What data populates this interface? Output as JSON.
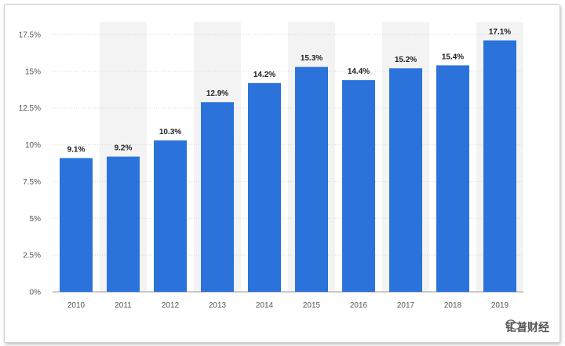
{
  "chart_data": {
    "type": "bar",
    "categories": [
      "2010",
      "2011",
      "2012",
      "2013",
      "2014",
      "2015",
      "2016",
      "2017",
      "2018",
      "2019"
    ],
    "values": [
      9.1,
      9.2,
      10.3,
      12.9,
      14.2,
      15.3,
      14.4,
      15.2,
      15.4,
      17.1
    ],
    "data_labels": [
      "9.1%",
      "9.2%",
      "10.3%",
      "12.9%",
      "14.2%",
      "15.3%",
      "14.4%",
      "15.2%",
      "15.4%",
      "17.1%"
    ],
    "y_ticks": [
      0,
      2.5,
      5,
      7.5,
      10,
      12.5,
      15,
      17.5
    ],
    "y_tick_labels": [
      "0%",
      "2.5%",
      "5%",
      "7.5%",
      "10%",
      "12.5%",
      "15%",
      "17.5%"
    ],
    "ylim": [
      0,
      17.5
    ],
    "grid": true,
    "bar_color": "#2b73db",
    "band_color": "#f3f3f3"
  },
  "watermark": {
    "text": "钜普财经",
    "icon": "wechat-icon"
  }
}
